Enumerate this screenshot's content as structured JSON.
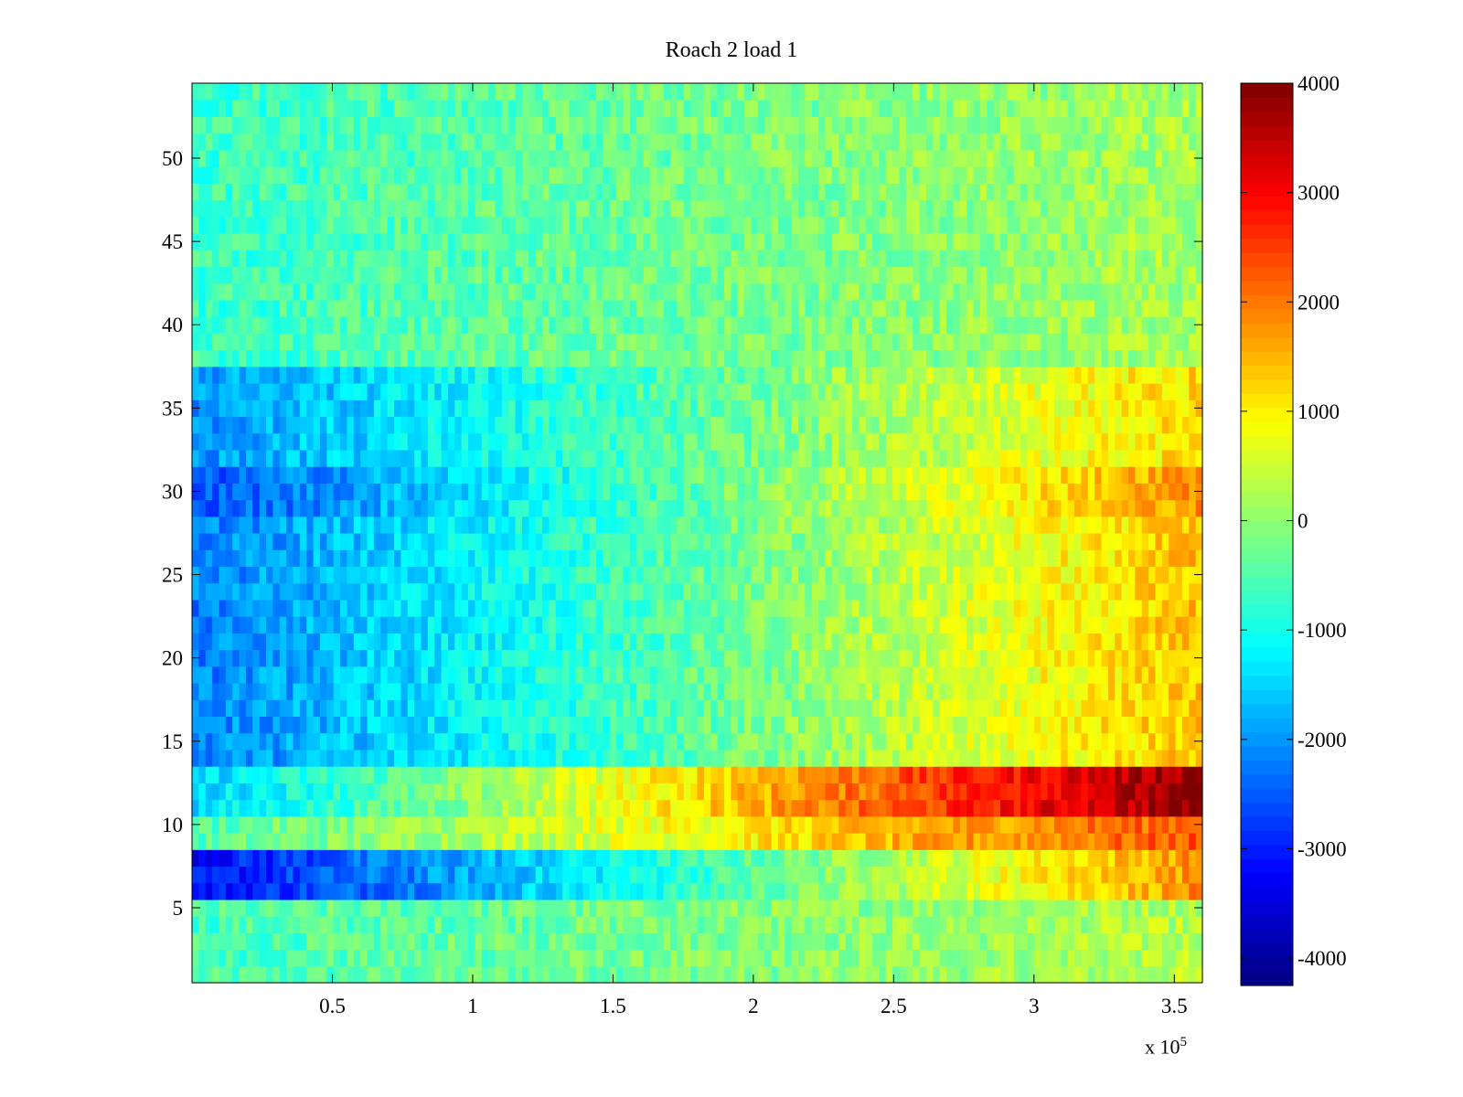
{
  "chart_data": {
    "type": "heatmap",
    "title": "Roach 2 load 1",
    "colormap": "jet",
    "x_range": [
      0,
      360000
    ],
    "y_range": [
      0.5,
      54.5
    ],
    "rows": 54,
    "x_ticks": [
      50000,
      100000,
      150000,
      200000,
      250000,
      300000,
      350000
    ],
    "x_tick_labels": [
      "0.5",
      "1",
      "1.5",
      "2",
      "2.5",
      "3",
      "3.5"
    ],
    "x_multiplier_text": "x 10",
    "x_multiplier_exponent": "5",
    "y_ticks": [
      5,
      10,
      15,
      20,
      25,
      30,
      35,
      40,
      45,
      50
    ],
    "y_tick_labels": [
      "5",
      "10",
      "15",
      "20",
      "25",
      "30",
      "35",
      "40",
      "45",
      "50"
    ],
    "colorbar": {
      "range": [
        -4250,
        4000
      ],
      "ticks": [
        4000,
        3000,
        2000,
        1000,
        0,
        -1000,
        -2000,
        -3000,
        -4000
      ],
      "tick_labels": [
        "4000",
        "3000",
        "2000",
        "1000",
        "0",
        "-1000",
        "-2000",
        "-3000",
        "-4000"
      ]
    },
    "approximate_row_trends": [
      {
        "rows": "1-5",
        "start": -600,
        "end": 300
      },
      {
        "rows": "6-8",
        "start": -3200,
        "end": 1800
      },
      {
        "rows": "9-10",
        "start": -500,
        "end": 2300
      },
      {
        "rows": "11-13",
        "start": -1500,
        "end": 3900
      },
      {
        "rows": "14-28",
        "start": -2200,
        "end": 1400
      },
      {
        "rows": "29-31",
        "start": -2600,
        "end": 1800
      },
      {
        "rows": "32-37",
        "start": -2000,
        "end": 1200
      },
      {
        "rows": "38-54",
        "start": -700,
        "end": 200
      }
    ]
  }
}
